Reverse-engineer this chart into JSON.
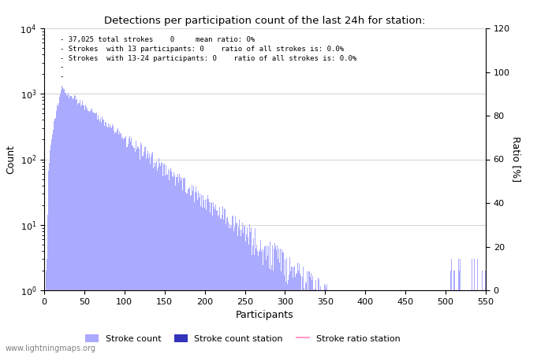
{
  "title": "Detections per participation count of the last 24h for station:",
  "xlabel": "Participants",
  "ylabel_left": "Count",
  "ylabel_right": "Ratio [%]",
  "annotation_lines": [
    "- 37,025 total strokes    0     mean ratio: 0%",
    "- Strokes  with 13 participants: 0    ratio of all strokes is: 0.0%",
    "- Strokes  with 13-24 participants: 0    ratio of all strokes is: 0.0%",
    "-",
    "-"
  ],
  "bar_color_light": "#aaaaff",
  "bar_color_dark": "#3333bb",
  "ratio_line_color": "#ff99cc",
  "watermark": "www.lightningmaps.org",
  "xlim": [
    0,
    550
  ],
  "ylim_left": [
    1,
    10000
  ],
  "ylim_right": [
    0,
    120
  ],
  "right_yticks": [
    0,
    20,
    40,
    60,
    80,
    100,
    120
  ],
  "xticks": [
    0,
    50,
    100,
    150,
    200,
    250,
    300,
    350,
    400,
    450,
    500,
    550
  ],
  "legend_entries": [
    "Stroke count",
    "Stroke count station",
    "Stroke ratio station"
  ]
}
